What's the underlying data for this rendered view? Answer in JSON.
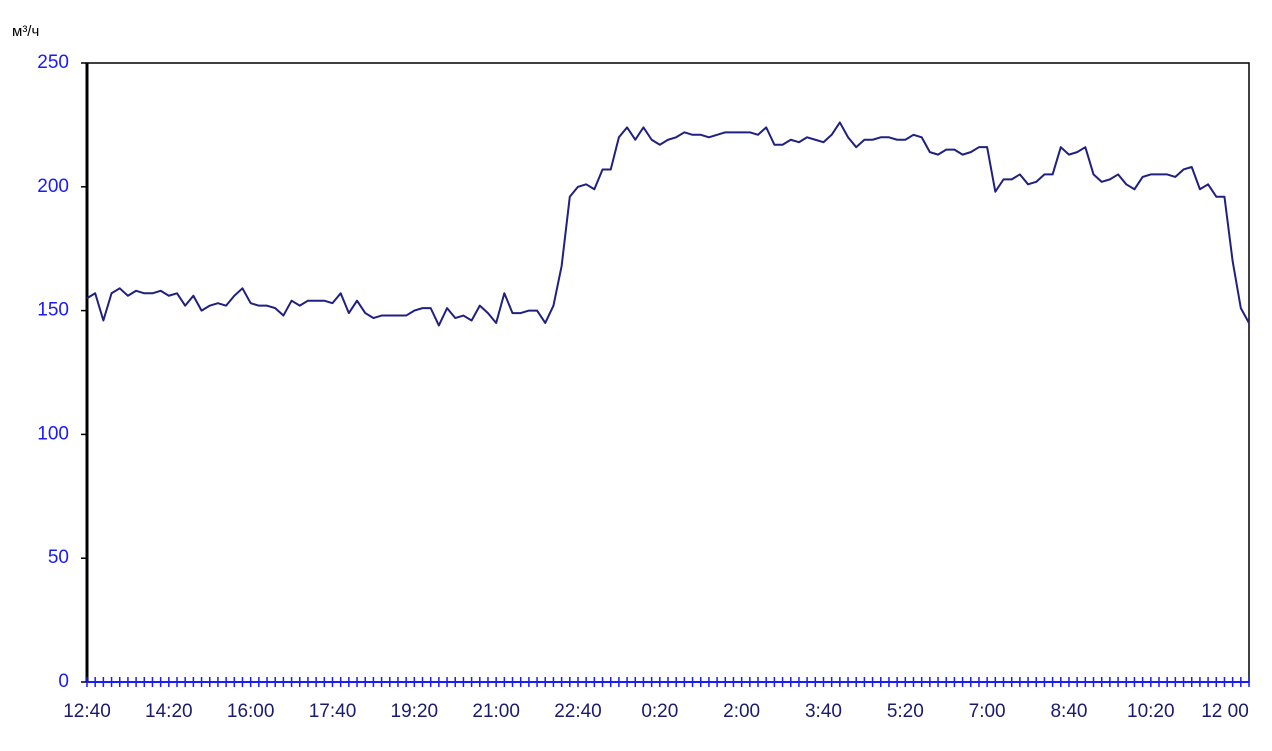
{
  "chart_data": {
    "type": "line",
    "y_label": "м³/ч",
    "categories": [
      "12:40",
      null,
      null,
      null,
      null,
      null,
      null,
      null,
      null,
      null,
      "14:20",
      null,
      null,
      null,
      null,
      null,
      null,
      null,
      null,
      null,
      "16:00",
      null,
      null,
      null,
      null,
      null,
      null,
      null,
      null,
      null,
      "17:40",
      null,
      null,
      null,
      null,
      null,
      null,
      null,
      null,
      null,
      "19:20",
      null,
      null,
      null,
      null,
      null,
      null,
      null,
      null,
      null,
      "21:00",
      null,
      null,
      null,
      null,
      null,
      null,
      null,
      null,
      null,
      "22:40",
      null,
      null,
      null,
      null,
      null,
      null,
      null,
      null,
      null,
      "0:20",
      null,
      null,
      null,
      null,
      null,
      null,
      null,
      null,
      null,
      "2:00",
      null,
      null,
      null,
      null,
      null,
      null,
      null,
      null,
      null,
      "3:40",
      null,
      null,
      null,
      null,
      null,
      null,
      null,
      null,
      null,
      "5:20",
      null,
      null,
      null,
      null,
      null,
      null,
      null,
      null,
      null,
      "7:00",
      null,
      null,
      null,
      null,
      null,
      null,
      null,
      null,
      null,
      "8:40",
      null,
      null,
      null,
      null,
      null,
      null,
      null,
      null,
      null,
      "10:20",
      null,
      null,
      null,
      null,
      null,
      null,
      null,
      null,
      null,
      "12 00",
      null,
      null
    ],
    "series": [
      {
        "name": null,
        "color": "#1f2080",
        "values": [
          155,
          157,
          146,
          157,
          159,
          156,
          158,
          157,
          157,
          158,
          156,
          157,
          152,
          156,
          150,
          152,
          153,
          152,
          156,
          159,
          153,
          152,
          152,
          151,
          148,
          154,
          152,
          154,
          154,
          154,
          153,
          157,
          149,
          154,
          149,
          147,
          148,
          148,
          148,
          148,
          150,
          151,
          151,
          144,
          151,
          147,
          148,
          146,
          152,
          149,
          145,
          157,
          149,
          149,
          150,
          150,
          145,
          152,
          168,
          196,
          200,
          201,
          199,
          207,
          207,
          220,
          224,
          219,
          224,
          219,
          217,
          219,
          220,
          222,
          221,
          221,
          220,
          221,
          222,
          222,
          222,
          222,
          221,
          224,
          217,
          217,
          219,
          218,
          220,
          219,
          218,
          221,
          226,
          220,
          216,
          219,
          219,
          220,
          220,
          219,
          219,
          221,
          220,
          214,
          213,
          215,
          215,
          213,
          214,
          216,
          216,
          198,
          203,
          203,
          205,
          201,
          202,
          205,
          205,
          216,
          213,
          214,
          216,
          205,
          202,
          203,
          205,
          201,
          199,
          204,
          205,
          205,
          205,
          204,
          207,
          208,
          199,
          201,
          196,
          196,
          170,
          151,
          145
        ]
      }
    ],
    "ylim": [
      0,
      250
    ],
    "yticks": [
      0,
      50,
      100,
      150,
      200,
      250
    ],
    "grid": false,
    "tick_color": "#1a1aff"
  }
}
